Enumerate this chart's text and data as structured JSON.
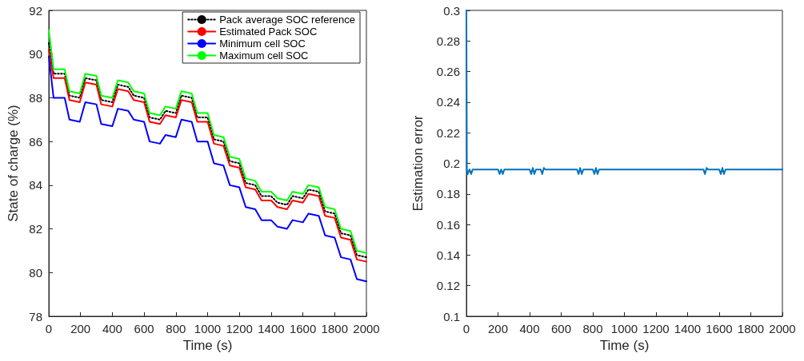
{
  "chart_data": [
    {
      "type": "line",
      "xlabel": "Time (s)",
      "ylabel": "State of charge (%)",
      "x": [
        0,
        30,
        100,
        130,
        195,
        230,
        300,
        330,
        400,
        435,
        500,
        535,
        600,
        635,
        700,
        735,
        800,
        835,
        900,
        935,
        1000,
        1040,
        1100,
        1140,
        1200,
        1240,
        1300,
        1340,
        1400,
        1440,
        1500,
        1535,
        1600,
        1635,
        1700,
        1740,
        1800,
        1840,
        1900,
        1940,
        2000
      ],
      "series": [
        {
          "name": "Pack average SOC reference",
          "color": "#000000",
          "line_style": "dotted",
          "values": [
            90.5,
            89.1,
            89.1,
            88.1,
            88.0,
            88.9,
            88.8,
            87.9,
            87.8,
            88.6,
            88.5,
            88.1,
            88.0,
            87.1,
            87.0,
            87.4,
            87.3,
            88.1,
            88.0,
            87.1,
            87.1,
            86.1,
            86.0,
            85.1,
            85.0,
            84.1,
            84.0,
            83.5,
            83.5,
            83.2,
            83.1,
            83.5,
            83.4,
            83.8,
            83.7,
            82.8,
            82.7,
            81.8,
            81.7,
            80.8,
            80.7
          ]
        },
        {
          "name": "Estimated Pack SOC",
          "color": "#ff0000",
          "values": [
            90.2,
            88.9,
            88.9,
            87.9,
            87.8,
            88.7,
            88.6,
            87.7,
            87.6,
            88.4,
            88.3,
            87.9,
            87.8,
            86.9,
            86.8,
            87.2,
            87.1,
            87.9,
            87.8,
            86.9,
            86.9,
            85.9,
            85.8,
            84.9,
            84.8,
            83.9,
            83.8,
            83.3,
            83.3,
            83.0,
            82.9,
            83.3,
            83.2,
            83.6,
            83.5,
            82.6,
            82.5,
            81.6,
            81.5,
            80.6,
            80.5
          ]
        },
        {
          "name": "Minimum cell SOC",
          "color": "#0000ff",
          "values": [
            89.9,
            88.0,
            88.0,
            87.0,
            86.9,
            87.8,
            87.7,
            86.8,
            86.7,
            87.5,
            87.4,
            87.0,
            86.9,
            86.0,
            85.9,
            86.3,
            86.2,
            87.0,
            86.9,
            86.0,
            86.0,
            85.0,
            84.9,
            84.0,
            83.9,
            83.0,
            82.9,
            82.4,
            82.4,
            82.1,
            82.0,
            82.4,
            82.3,
            82.7,
            82.6,
            81.7,
            81.6,
            80.7,
            80.6,
            79.7,
            79.6
          ]
        },
        {
          "name": "Maximum cell SOC",
          "color": "#00ff00",
          "values": [
            91.1,
            89.3,
            89.3,
            88.3,
            88.2,
            89.1,
            89.0,
            88.1,
            88.0,
            88.8,
            88.7,
            88.3,
            88.2,
            87.3,
            87.2,
            87.6,
            87.5,
            88.3,
            88.2,
            87.3,
            87.3,
            86.3,
            86.2,
            85.3,
            85.2,
            84.3,
            84.2,
            83.7,
            83.7,
            83.4,
            83.3,
            83.7,
            83.6,
            84.0,
            83.9,
            83.0,
            82.9,
            82.0,
            81.9,
            81.0,
            80.9
          ]
        }
      ],
      "xlim": [
        0,
        2000
      ],
      "xticks": [
        0,
        200,
        400,
        600,
        800,
        1000,
        1200,
        1400,
        1600,
        1800,
        2000
      ],
      "ylim": [
        78,
        92
      ],
      "yticks": [
        78,
        80,
        82,
        84,
        86,
        88,
        90,
        92
      ],
      "legend": "top right",
      "line_style": "solid",
      "marker": "none",
      "grid": false
    },
    {
      "type": "line",
      "xlabel": "Time (s)",
      "ylabel": "Estimation error",
      "x": [
        0,
        3,
        8,
        20,
        30,
        40,
        200,
        210,
        220,
        230,
        240,
        400,
        410,
        420,
        430,
        440,
        470,
        480,
        490,
        500,
        700,
        710,
        720,
        730,
        740,
        800,
        810,
        820,
        830,
        840,
        1500,
        1510,
        1520,
        1530,
        1600,
        1610,
        1620,
        1630,
        1640,
        2000
      ],
      "series": [
        {
          "color": "#0072bd",
          "values": [
            0.3,
            0.196,
            0.193,
            0.196,
            0.193,
            0.196,
            0.196,
            0.193,
            0.196,
            0.193,
            0.196,
            0.196,
            0.193,
            0.197,
            0.193,
            0.196,
            0.196,
            0.193,
            0.197,
            0.196,
            0.196,
            0.193,
            0.197,
            0.193,
            0.196,
            0.196,
            0.193,
            0.197,
            0.193,
            0.196,
            0.196,
            0.193,
            0.197,
            0.196,
            0.196,
            0.193,
            0.197,
            0.193,
            0.196,
            0.196
          ]
        }
      ],
      "xlim": [
        0,
        2000
      ],
      "xticks": [
        0,
        200,
        400,
        600,
        800,
        1000,
        1200,
        1400,
        1600,
        1800,
        2000
      ],
      "ylim": [
        0.1,
        0.3
      ],
      "yticks": [
        0.1,
        0.12,
        0.14,
        0.16,
        0.18,
        0.2,
        0.22,
        0.24,
        0.26,
        0.28,
        0.3
      ],
      "legend": false,
      "line_style": "solid",
      "marker": "none",
      "grid": false
    }
  ]
}
